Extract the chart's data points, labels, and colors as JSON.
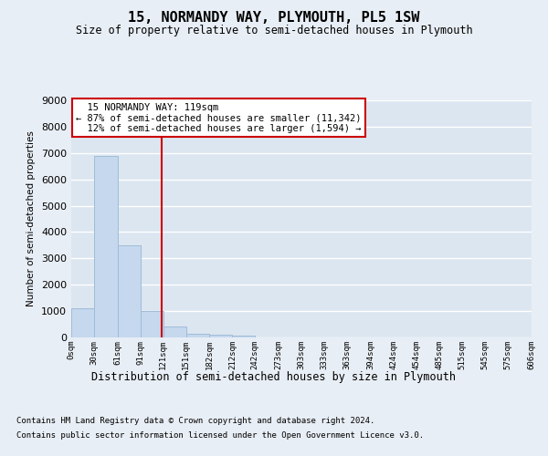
{
  "title": "15, NORMANDY WAY, PLYMOUTH, PL5 1SW",
  "subtitle": "Size of property relative to semi-detached houses in Plymouth",
  "xlabel": "Distribution of semi-detached houses by size in Plymouth",
  "ylabel": "Number of semi-detached properties",
  "property_size": 119,
  "property_label": "15 NORMANDY WAY: 119sqm",
  "pct_smaller": 87,
  "num_smaller": "11,342",
  "pct_larger": 12,
  "num_larger": "1,594",
  "bar_color": "#c5d8ed",
  "bar_edge_color": "#a0bcd8",
  "marker_color": "#cc0000",
  "annotation_box_color": "#cc0000",
  "background_color": "#e8eef5",
  "plot_bg_color": "#dce6f0",
  "grid_color": "#ffffff",
  "bin_edges": [
    0,
    30,
    61,
    91,
    121,
    151,
    182,
    212,
    242,
    273,
    303,
    333,
    363,
    394,
    424,
    454,
    485,
    515,
    545,
    575,
    606
  ],
  "bin_labels": [
    "0sqm",
    "30sqm",
    "61sqm",
    "91sqm",
    "121sqm",
    "151sqm",
    "182sqm",
    "212sqm",
    "242sqm",
    "273sqm",
    "303sqm",
    "333sqm",
    "363sqm",
    "394sqm",
    "424sqm",
    "454sqm",
    "485sqm",
    "515sqm",
    "545sqm",
    "575sqm",
    "606sqm"
  ],
  "bar_heights": [
    1100,
    6900,
    3500,
    1000,
    400,
    150,
    100,
    80,
    0,
    0,
    0,
    0,
    0,
    0,
    0,
    0,
    0,
    0,
    0,
    0
  ],
  "ylim": [
    0,
    9000
  ],
  "yticks": [
    0,
    1000,
    2000,
    3000,
    4000,
    5000,
    6000,
    7000,
    8000,
    9000
  ],
  "footer_line1": "Contains HM Land Registry data © Crown copyright and database right 2024.",
  "footer_line2": "Contains public sector information licensed under the Open Government Licence v3.0."
}
